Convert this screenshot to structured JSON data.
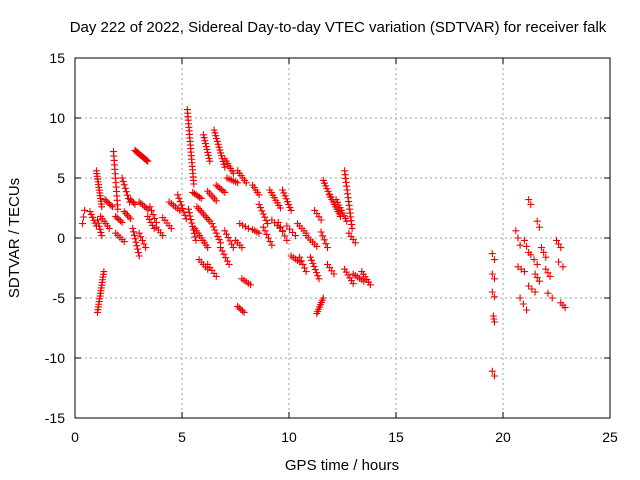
{
  "chart_data": {
    "type": "scatter",
    "title": "Day 222 of 2022, Sidereal Day-to-day VTEC variation (SDTVAR) for receiver falk",
    "xlabel": "GPS time / hours",
    "ylabel": "SDTVAR / TECUs",
    "xlim": [
      0,
      25
    ],
    "ylim": [
      -15,
      15
    ],
    "xticks": [
      "0",
      "5",
      "10",
      "15",
      "20",
      "25"
    ],
    "yticks": [
      "-15",
      "-10",
      "-5",
      "0",
      "5",
      "10",
      "15"
    ],
    "grid": true,
    "marker": "plus",
    "series_color": "#ee0000",
    "segments": [
      {
        "x0": 0.35,
        "x1": 0.45,
        "y0": 1.2,
        "y1": 2.3,
        "n": 3
      },
      {
        "x0": 0.7,
        "x1": 1.0,
        "y0": 2.2,
        "y1": 1.0,
        "n": 6
      },
      {
        "x0": 1.0,
        "x1": 1.25,
        "y0": 5.6,
        "y1": 2.6,
        "n": 14
      },
      {
        "x0": 1.05,
        "x1": 1.25,
        "y0": 1.5,
        "y1": 0.2,
        "n": 6
      },
      {
        "x0": 1.05,
        "x1": 1.35,
        "y0": -6.2,
        "y1": -2.8,
        "n": 16
      },
      {
        "x0": 1.2,
        "x1": 1.6,
        "y0": 1.8,
        "y1": 0.8,
        "n": 6
      },
      {
        "x0": 1.4,
        "x1": 1.75,
        "y0": 3.2,
        "y1": 2.6,
        "n": 6
      },
      {
        "x0": 1.8,
        "x1": 2.0,
        "y0": 7.2,
        "y1": 2.4,
        "n": 14
      },
      {
        "x0": 1.9,
        "x1": 2.2,
        "y0": 1.8,
        "y1": 1.3,
        "n": 5
      },
      {
        "x0": 1.9,
        "x1": 2.3,
        "y0": 0.4,
        "y1": -0.3,
        "n": 5
      },
      {
        "x0": 2.2,
        "x1": 2.55,
        "y0": 5.0,
        "y1": 3.0,
        "n": 8
      },
      {
        "x0": 2.3,
        "x1": 2.6,
        "y0": 2.2,
        "y1": 1.6,
        "n": 5
      },
      {
        "x0": 2.6,
        "x1": 2.8,
        "y0": 3.2,
        "y1": 2.8,
        "n": 4
      },
      {
        "x0": 2.7,
        "x1": 3.0,
        "y0": 0.8,
        "y1": -1.5,
        "n": 9
      },
      {
        "x0": 2.8,
        "x1": 3.4,
        "y0": 7.3,
        "y1": 6.4,
        "n": 16
      },
      {
        "x0": 3.0,
        "x1": 3.3,
        "y0": 0.4,
        "y1": -0.8,
        "n": 5
      },
      {
        "x0": 3.0,
        "x1": 3.4,
        "y0": 3.0,
        "y1": 2.4,
        "n": 6
      },
      {
        "x0": 3.4,
        "x1": 3.7,
        "y0": 1.8,
        "y1": 0.8,
        "n": 5
      },
      {
        "x0": 3.5,
        "x1": 3.8,
        "y0": 2.6,
        "y1": 1.3,
        "n": 5
      },
      {
        "x0": 3.8,
        "x1": 4.1,
        "y0": 0.9,
        "y1": 0.2,
        "n": 4
      },
      {
        "x0": 4.1,
        "x1": 4.5,
        "y0": 1.7,
        "y1": 0.8,
        "n": 5
      },
      {
        "x0": 4.4,
        "x1": 4.9,
        "y0": 3.0,
        "y1": 2.3,
        "n": 6
      },
      {
        "x0": 4.8,
        "x1": 5.2,
        "y0": 3.6,
        "y1": 1.6,
        "n": 8
      },
      {
        "x0": 5.25,
        "x1": 5.55,
        "y0": 10.7,
        "y1": 4.5,
        "n": 22
      },
      {
        "x0": 5.3,
        "x1": 5.65,
        "y0": 2.4,
        "y1": -0.2,
        "n": 10
      },
      {
        "x0": 5.5,
        "x1": 5.9,
        "y0": 3.8,
        "y1": 3.3,
        "n": 6
      },
      {
        "x0": 5.6,
        "x1": 6.2,
        "y0": 0.8,
        "y1": -0.8,
        "n": 9
      },
      {
        "x0": 5.7,
        "x1": 6.3,
        "y0": 2.6,
        "y1": 1.4,
        "n": 9
      },
      {
        "x0": 5.8,
        "x1": 6.2,
        "y0": -1.8,
        "y1": -2.6,
        "n": 5
      },
      {
        "x0": 6.0,
        "x1": 6.3,
        "y0": 8.6,
        "y1": 6.4,
        "n": 10
      },
      {
        "x0": 6.2,
        "x1": 6.6,
        "y0": 3.9,
        "y1": 3.1,
        "n": 6
      },
      {
        "x0": 6.2,
        "x1": 6.6,
        "y0": -2.2,
        "y1": -3.2,
        "n": 5
      },
      {
        "x0": 6.4,
        "x1": 6.8,
        "y0": 1.2,
        "y1": -0.4,
        "n": 7
      },
      {
        "x0": 6.5,
        "x1": 7.0,
        "y0": 9.0,
        "y1": 5.9,
        "n": 14
      },
      {
        "x0": 6.6,
        "x1": 7.0,
        "y0": 4.4,
        "y1": 3.8,
        "n": 6
      },
      {
        "x0": 6.8,
        "x1": 7.2,
        "y0": -0.8,
        "y1": -2.2,
        "n": 6
      },
      {
        "x0": 7.0,
        "x1": 7.4,
        "y0": 0.6,
        "y1": -0.8,
        "n": 6
      },
      {
        "x0": 7.0,
        "x1": 7.4,
        "y0": 6.6,
        "y1": 5.4,
        "n": 7
      },
      {
        "x0": 7.1,
        "x1": 7.6,
        "y0": 5.0,
        "y1": 4.6,
        "n": 6
      },
      {
        "x0": 7.5,
        "x1": 7.8,
        "y0": -0.2,
        "y1": -0.8,
        "n": 4
      },
      {
        "x0": 7.6,
        "x1": 7.9,
        "y0": -5.7,
        "y1": -6.2,
        "n": 5
      },
      {
        "x0": 7.6,
        "x1": 8.0,
        "y0": 5.6,
        "y1": 4.6,
        "n": 6
      },
      {
        "x0": 7.8,
        "x1": 8.2,
        "y0": -3.4,
        "y1": -3.9,
        "n": 5
      },
      {
        "x0": 7.7,
        "x1": 8.1,
        "y0": 1.2,
        "y1": 0.8,
        "n": 4
      },
      {
        "x0": 8.3,
        "x1": 8.6,
        "y0": 0.7,
        "y1": 0.4,
        "n": 4
      },
      {
        "x0": 8.3,
        "x1": 8.6,
        "y0": 4.4,
        "y1": 3.6,
        "n": 5
      },
      {
        "x0": 8.6,
        "x1": 9.0,
        "y0": 2.8,
        "y1": 1.2,
        "n": 7
      },
      {
        "x0": 8.8,
        "x1": 9.2,
        "y0": 0.9,
        "y1": -0.6,
        "n": 6
      },
      {
        "x0": 9.1,
        "x1": 9.6,
        "y0": 4.0,
        "y1": 2.5,
        "n": 8
      },
      {
        "x0": 9.2,
        "x1": 9.7,
        "y0": 1.5,
        "y1": 0.6,
        "n": 5
      },
      {
        "x0": 9.5,
        "x1": 9.9,
        "y0": 1.3,
        "y1": -0.2,
        "n": 5
      },
      {
        "x0": 9.7,
        "x1": 10.1,
        "y0": 4.0,
        "y1": 2.3,
        "n": 8
      },
      {
        "x0": 9.9,
        "x1": 10.3,
        "y0": 1.0,
        "y1": 0.2,
        "n": 4
      },
      {
        "x0": 10.1,
        "x1": 10.5,
        "y0": -1.5,
        "y1": -2.0,
        "n": 5
      },
      {
        "x0": 10.4,
        "x1": 10.8,
        "y0": 1.2,
        "y1": 0.4,
        "n": 5
      },
      {
        "x0": 10.5,
        "x1": 10.8,
        "y0": -1.6,
        "y1": -2.8,
        "n": 5
      },
      {
        "x0": 10.8,
        "x1": 11.3,
        "y0": 0.2,
        "y1": -0.7,
        "n": 6
      },
      {
        "x0": 11.0,
        "x1": 11.4,
        "y0": -1.6,
        "y1": -3.4,
        "n": 8
      },
      {
        "x0": 11.2,
        "x1": 11.5,
        "y0": 2.3,
        "y1": 1.5,
        "n": 4
      },
      {
        "x0": 11.3,
        "x1": 11.6,
        "y0": -6.3,
        "y1": -5.0,
        "n": 8
      },
      {
        "x0": 11.5,
        "x1": 11.8,
        "y0": 0.5,
        "y1": -0.8,
        "n": 5
      },
      {
        "x0": 11.6,
        "x1": 12.0,
        "y0": 4.8,
        "y1": 3.2,
        "n": 8
      },
      {
        "x0": 11.8,
        "x1": 12.1,
        "y0": -2.2,
        "y1": -3.0,
        "n": 4
      },
      {
        "x0": 11.9,
        "x1": 12.4,
        "y0": 3.6,
        "y1": 1.8,
        "n": 10
      },
      {
        "x0": 12.2,
        "x1": 12.7,
        "y0": 3.2,
        "y1": 1.4,
        "n": 9
      },
      {
        "x0": 12.6,
        "x1": 12.95,
        "y0": 5.6,
        "y1": 0.8,
        "n": 16
      },
      {
        "x0": 12.8,
        "x1": 13.1,
        "y0": 0.4,
        "y1": -0.4,
        "n": 4
      },
      {
        "x0": 12.6,
        "x1": 13.0,
        "y0": -2.6,
        "y1": -3.8,
        "n": 6
      },
      {
        "x0": 13.0,
        "x1": 13.5,
        "y0": -3.0,
        "y1": -3.6,
        "n": 6
      },
      {
        "x0": 13.4,
        "x1": 13.8,
        "y0": -2.8,
        "y1": -3.9,
        "n": 6
      },
      {
        "x0": 19.5,
        "x1": 19.6,
        "y0": -1.3,
        "y1": -1.8,
        "n": 2
      },
      {
        "x0": 19.5,
        "x1": 19.6,
        "y0": -3.0,
        "y1": -3.4,
        "n": 2
      },
      {
        "x0": 19.5,
        "x1": 19.6,
        "y0": -4.5,
        "y1": -4.9,
        "n": 2
      },
      {
        "x0": 19.55,
        "x1": 19.6,
        "y0": -6.5,
        "y1": -7.0,
        "n": 3
      },
      {
        "x0": 19.5,
        "x1": 19.6,
        "y0": -11.1,
        "y1": -11.5,
        "n": 2
      },
      {
        "x0": 20.6,
        "x1": 20.8,
        "y0": 0.6,
        "y1": -0.6,
        "n": 3
      },
      {
        "x0": 20.7,
        "x1": 21.0,
        "y0": -2.4,
        "y1": -2.8,
        "n": 3
      },
      {
        "x0": 20.8,
        "x1": 21.1,
        "y0": -5.0,
        "y1": -6.0,
        "n": 3
      },
      {
        "x0": 21.0,
        "x1": 21.2,
        "y0": -0.2,
        "y1": -1.2,
        "n": 3
      },
      {
        "x0": 21.2,
        "x1": 21.3,
        "y0": 3.2,
        "y1": 2.8,
        "n": 2
      },
      {
        "x0": 21.2,
        "x1": 21.5,
        "y0": -4.0,
        "y1": -4.5,
        "n": 3
      },
      {
        "x0": 21.3,
        "x1": 21.6,
        "y0": -1.4,
        "y1": -2.2,
        "n": 3
      },
      {
        "x0": 21.5,
        "x1": 21.7,
        "y0": -3.0,
        "y1": -3.6,
        "n": 3
      },
      {
        "x0": 21.6,
        "x1": 21.7,
        "y0": 1.4,
        "y1": 0.9,
        "n": 2
      },
      {
        "x0": 21.8,
        "x1": 22.0,
        "y0": -0.8,
        "y1": -1.6,
        "n": 3
      },
      {
        "x0": 22.0,
        "x1": 22.2,
        "y0": -2.6,
        "y1": -3.2,
        "n": 3
      },
      {
        "x0": 22.1,
        "x1": 22.3,
        "y0": -4.6,
        "y1": -5.0,
        "n": 2
      },
      {
        "x0": 22.5,
        "x1": 22.7,
        "y0": -0.2,
        "y1": -0.8,
        "n": 3
      },
      {
        "x0": 22.6,
        "x1": 22.8,
        "y0": -2.0,
        "y1": -2.4,
        "n": 2
      },
      {
        "x0": 22.7,
        "x1": 22.9,
        "y0": -5.4,
        "y1": -5.8,
        "n": 3
      }
    ]
  }
}
